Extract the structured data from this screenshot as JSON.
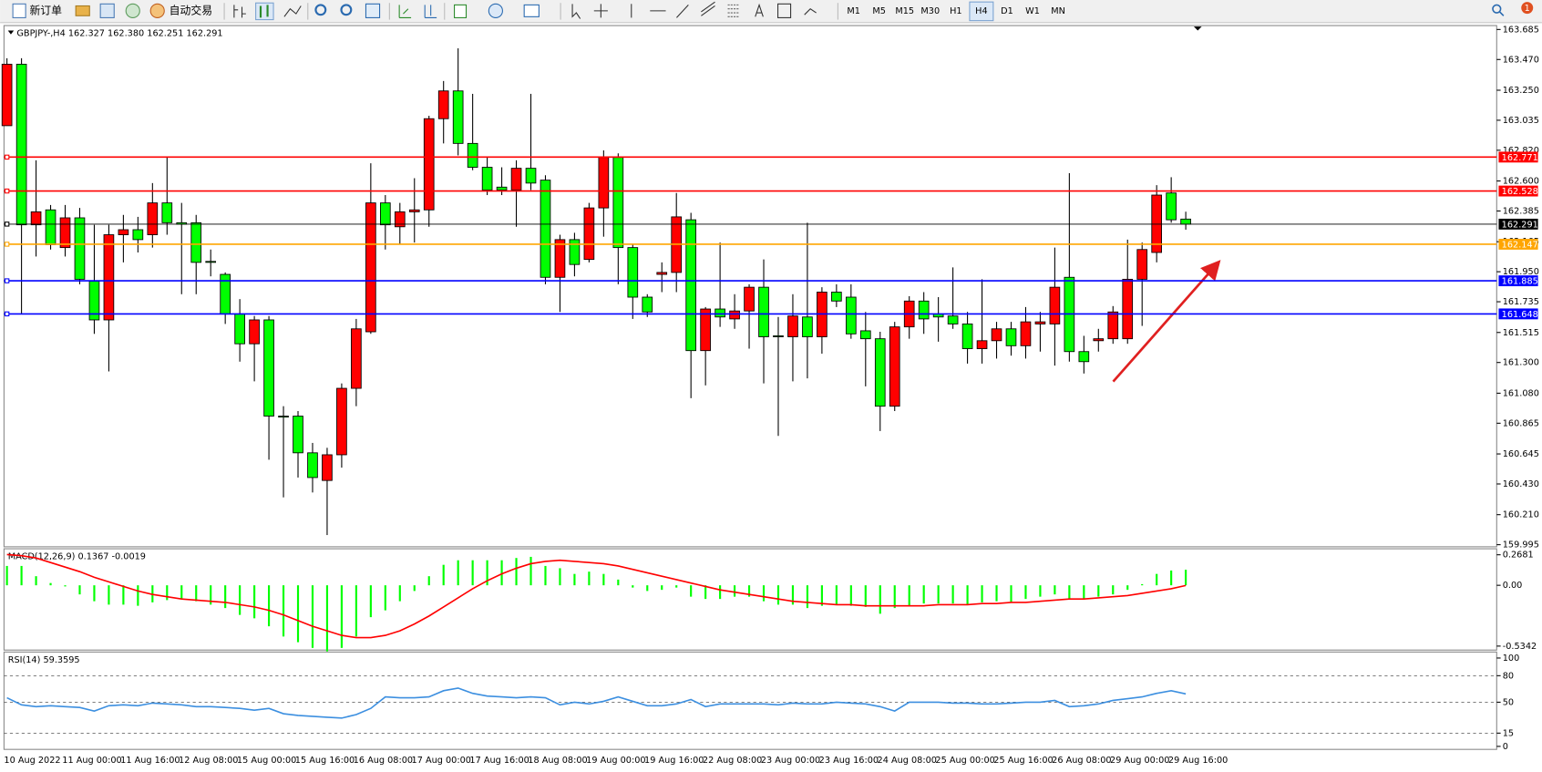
{
  "toolbar": {
    "new_order": "新订单",
    "auto_trading": "自动交易",
    "timeframes": [
      "M1",
      "M5",
      "M15",
      "M30",
      "H1",
      "H4",
      "D1",
      "W1",
      "MN"
    ],
    "active_timeframe": "H4",
    "notifications": 1
  },
  "chart_data": [
    {
      "type": "candlestick",
      "title": "GBPJPY-,H4  162.327 162.380 162.251 162.291",
      "categories": [
        "10 Aug 2022",
        null,
        null,
        null,
        "11 Aug 00:00",
        null,
        null,
        null,
        "11 Aug 16:00",
        null,
        null,
        null,
        "12 Aug 08:00",
        null,
        null,
        null,
        "15 Aug 00:00",
        null,
        null,
        null,
        "15 Aug 16:00",
        null,
        null,
        null,
        "16 Aug 08:00",
        null,
        null,
        null,
        "17 Aug 00:00",
        null,
        null,
        null,
        "17 Aug 16:00",
        null,
        null,
        null,
        "18 Aug 08:00",
        null,
        null,
        null,
        "19 Aug 00:00",
        null,
        null,
        null,
        "19 Aug 16:00",
        null,
        null,
        null,
        "22 Aug 08:00",
        null,
        null,
        null,
        "23 Aug 00:00",
        null,
        null,
        null,
        "23 Aug 16:00",
        null,
        null,
        null,
        "24 Aug 08:00",
        null,
        null,
        null,
        "25 Aug 00:00",
        null,
        null,
        null,
        "25 Aug 16:00",
        null,
        null,
        null,
        "26 Aug 08:00",
        null,
        null,
        null,
        "29 Aug 00:00",
        null,
        null,
        null,
        "29 Aug 16:00",
        null
      ],
      "open": [
        162.996,
        163.436,
        162.286,
        162.393,
        162.123,
        162.336,
        161.882,
        161.605,
        162.215,
        162.251,
        162.215,
        162.443,
        162.301,
        162.301,
        162.024,
        161.931,
        161.647,
        161.434,
        161.605,
        160.916,
        160.916,
        160.653,
        160.455,
        160.639,
        161.115,
        161.52,
        162.443,
        162.272,
        162.379,
        162.393,
        163.046,
        163.245,
        162.869,
        162.698,
        162.556,
        162.535,
        162.691,
        162.606,
        161.91,
        162.18,
        162.038,
        162.407,
        162.769,
        162.123,
        161.768,
        161.931,
        161.945,
        162.322,
        161.385,
        161.683,
        161.612,
        161.669,
        161.839,
        161.491,
        161.484,
        161.626,
        161.484,
        161.804,
        161.768,
        161.527,
        161.47,
        160.987,
        161.555,
        161.74,
        161.647,
        161.633,
        161.576,
        161.399,
        161.456,
        161.541,
        161.42,
        161.576,
        161.576,
        161.91,
        161.378,
        161.456,
        161.47,
        161.47,
        161.896,
        162.088,
        162.514,
        162.327
      ],
      "high": [
        163.479,
        163.479,
        162.748,
        162.428,
        162.428,
        162.407,
        162.286,
        162.286,
        162.357,
        162.343,
        162.585,
        162.769,
        162.443,
        162.357,
        162.109,
        161.945,
        161.754,
        161.633,
        161.633,
        160.987,
        160.952,
        160.724,
        160.689,
        161.15,
        161.612,
        162.727,
        162.499,
        162.443,
        162.62,
        163.067,
        163.316,
        163.55,
        163.224,
        162.769,
        162.698,
        162.748,
        163.224,
        162.641,
        162.215,
        162.229,
        162.443,
        162.819,
        162.798,
        162.144,
        161.789,
        162.017,
        162.514,
        162.372,
        161.697,
        162.159,
        161.789,
        161.86,
        162.038,
        161.626,
        161.789,
        162.301,
        161.839,
        161.86,
        161.86,
        161.662,
        161.52,
        161.591,
        161.775,
        161.804,
        161.768,
        161.981,
        161.662,
        161.896,
        161.591,
        161.591,
        161.697,
        161.662,
        162.123,
        162.656,
        161.491,
        161.541,
        161.704,
        162.18,
        162.159,
        162.57,
        162.627,
        162.38
      ],
      "low": [
        162.996,
        161.647,
        162.059,
        162.109,
        162.059,
        161.86,
        161.505,
        161.236,
        162.017,
        162.088,
        162.123,
        162.215,
        161.789,
        161.789,
        161.917,
        161.576,
        161.306,
        161.165,
        160.604,
        160.334,
        160.476,
        160.369,
        160.064,
        160.547,
        160.987,
        161.505,
        162.109,
        162.144,
        162.159,
        162.272,
        162.869,
        162.783,
        162.677,
        162.499,
        162.499,
        162.272,
        162.535,
        161.86,
        161.662,
        161.917,
        162.017,
        162.201,
        161.86,
        161.612,
        161.626,
        161.804,
        161.804,
        161.044,
        161.136,
        161.555,
        161.541,
        161.399,
        161.15,
        160.774,
        161.165,
        161.186,
        161.363,
        161.697,
        161.47,
        161.129,
        160.809,
        160.952,
        161.47,
        161.505,
        161.449,
        161.541,
        161.292,
        161.292,
        161.328,
        161.349,
        161.328,
        161.378,
        161.278,
        161.306,
        161.221,
        161.378,
        161.434,
        161.434,
        161.562,
        162.017,
        162.301,
        162.251
      ],
      "close": [
        163.436,
        162.286,
        162.379,
        162.144,
        162.336,
        161.896,
        161.605,
        162.215,
        162.251,
        162.18,
        162.443,
        162.301,
        162.29,
        162.017,
        162.017,
        161.647,
        161.434,
        161.605,
        160.916,
        160.909,
        160.653,
        160.476,
        160.639,
        161.115,
        161.541,
        162.443,
        162.286,
        162.379,
        162.393,
        163.046,
        163.245,
        162.869,
        162.698,
        162.535,
        162.535,
        162.691,
        162.585,
        161.91,
        162.18,
        162.002,
        162.407,
        162.769,
        162.123,
        161.768,
        161.662,
        161.945,
        162.343,
        161.385,
        161.683,
        161.626,
        161.669,
        161.839,
        161.484,
        161.484,
        161.633,
        161.484,
        161.804,
        161.74,
        161.505,
        161.47,
        160.987,
        161.555,
        161.74,
        161.612,
        161.626,
        161.576,
        161.399,
        161.456,
        161.541,
        161.42,
        161.591,
        161.591,
        161.839,
        161.378,
        161.306,
        161.47,
        161.662,
        161.896,
        162.109,
        162.499,
        162.322,
        162.291
      ],
      "up_color": "#ff0000",
      "down_color": "#00ff00",
      "ylim": [
        159.98,
        163.713
      ],
      "yticks": [
        163.685,
        {
          "value": 163.47,
          "label": "163.470"
        },
        {
          "value": 163.25,
          "label": "163.250"
        },
        163.035,
        {
          "value": 162.82,
          "label": "162.820"
        },
        {
          "value": 162.6,
          "label": "162.600"
        },
        162.385,
        162.165,
        {
          "value": 161.95,
          "label": "161.950"
        },
        161.735,
        161.515,
        {
          "value": 161.3,
          "label": "161.300"
        },
        {
          "value": 161.08,
          "label": "161.080"
        },
        160.865,
        160.645,
        {
          "value": 160.43,
          "label": "160.430"
        },
        {
          "value": 160.21,
          "label": "160.210"
        },
        159.995
      ],
      "hlines": [
        {
          "value": 162.771,
          "color": "#ff0000"
        },
        {
          "value": 162.528,
          "color": "#ff0000"
        },
        {
          "value": 162.291,
          "color": "#000000"
        },
        {
          "value": 162.147,
          "color": "#ffa500"
        },
        {
          "value": 161.885,
          "color": "#0000ff"
        },
        {
          "value": 161.648,
          "color": "#0000ff"
        }
      ]
    },
    {
      "type": "macd",
      "title": "MACD(12,26,9) 0.1367 -0.0019",
      "histogram": [
        0.17,
        0.17,
        0.08,
        0.02,
        -0.01,
        -0.08,
        -0.14,
        -0.17,
        -0.17,
        -0.18,
        -0.15,
        -0.13,
        -0.12,
        -0.14,
        -0.17,
        -0.2,
        -0.26,
        -0.29,
        -0.36,
        -0.45,
        -0.5,
        -0.55,
        -0.58,
        -0.55,
        -0.45,
        -0.28,
        -0.22,
        -0.14,
        -0.05,
        0.08,
        0.18,
        0.22,
        0.22,
        0.22,
        0.22,
        0.24,
        0.25,
        0.17,
        0.15,
        0.1,
        0.12,
        0.1,
        0.05,
        -0.02,
        -0.05,
        -0.04,
        -0.02,
        -0.1,
        -0.12,
        -0.12,
        -0.1,
        -0.1,
        -0.14,
        -0.17,
        -0.17,
        -0.2,
        -0.18,
        -0.17,
        -0.18,
        -0.19,
        -0.25,
        -0.2,
        -0.18,
        -0.16,
        -0.16,
        -0.16,
        -0.17,
        -0.15,
        -0.14,
        -0.15,
        -0.12,
        -0.1,
        -0.08,
        -0.12,
        -0.12,
        -0.1,
        -0.08,
        -0.04,
        0.01,
        0.1,
        0.13,
        0.1367
      ],
      "signal": [
        0.27,
        0.26,
        0.24,
        0.2,
        0.16,
        0.12,
        0.07,
        0.03,
        -0.01,
        -0.05,
        -0.08,
        -0.1,
        -0.12,
        -0.13,
        -0.14,
        -0.15,
        -0.17,
        -0.19,
        -0.22,
        -0.26,
        -0.31,
        -0.36,
        -0.4,
        -0.44,
        -0.46,
        -0.46,
        -0.44,
        -0.4,
        -0.34,
        -0.27,
        -0.19,
        -0.11,
        -0.03,
        0.04,
        0.1,
        0.15,
        0.19,
        0.21,
        0.22,
        0.21,
        0.2,
        0.19,
        0.17,
        0.14,
        0.11,
        0.08,
        0.05,
        0.02,
        -0.01,
        -0.04,
        -0.06,
        -0.08,
        -0.1,
        -0.12,
        -0.14,
        -0.15,
        -0.16,
        -0.17,
        -0.17,
        -0.18,
        -0.18,
        -0.18,
        -0.18,
        -0.18,
        -0.17,
        -0.17,
        -0.17,
        -0.16,
        -0.16,
        -0.15,
        -0.15,
        -0.14,
        -0.13,
        -0.12,
        -0.12,
        -0.11,
        -0.1,
        -0.09,
        -0.07,
        -0.05,
        -0.03,
        -0.0019
      ],
      "histogram_color": "#00ff00",
      "signal_color": "#ff0000",
      "ylim": [
        -0.569,
        0.321
      ],
      "yticks": [
        0.2681,
        {
          "value": 0,
          "label": "0.00"
        },
        -0.5342
      ]
    },
    {
      "type": "rsi",
      "title": "RSI(14) 59.3595",
      "values": [
        55,
        47,
        45,
        46,
        45,
        44,
        40,
        46,
        47,
        46,
        49,
        48,
        47,
        45,
        45,
        44,
        43,
        41,
        43,
        37,
        35,
        34,
        33,
        32,
        36,
        43,
        56,
        55,
        55,
        56,
        63,
        66,
        60,
        57,
        56,
        55,
        56,
        55,
        47,
        50,
        48,
        51,
        56,
        51,
        46,
        46,
        48,
        53,
        45,
        48,
        48,
        48,
        48,
        47,
        49,
        48,
        48,
        50,
        49,
        48,
        45,
        40,
        50,
        50,
        50,
        49,
        49,
        48,
        48,
        49,
        50,
        50,
        52,
        45,
        46,
        48,
        52,
        54,
        56,
        60,
        63,
        59.3595
      ],
      "color": "#3c8fe0",
      "ylim": [
        -3.4,
        106.8
      ],
      "yticks": [
        100,
        80,
        50,
        15,
        0
      ],
      "levels": [
        80,
        50,
        15
      ]
    }
  ]
}
